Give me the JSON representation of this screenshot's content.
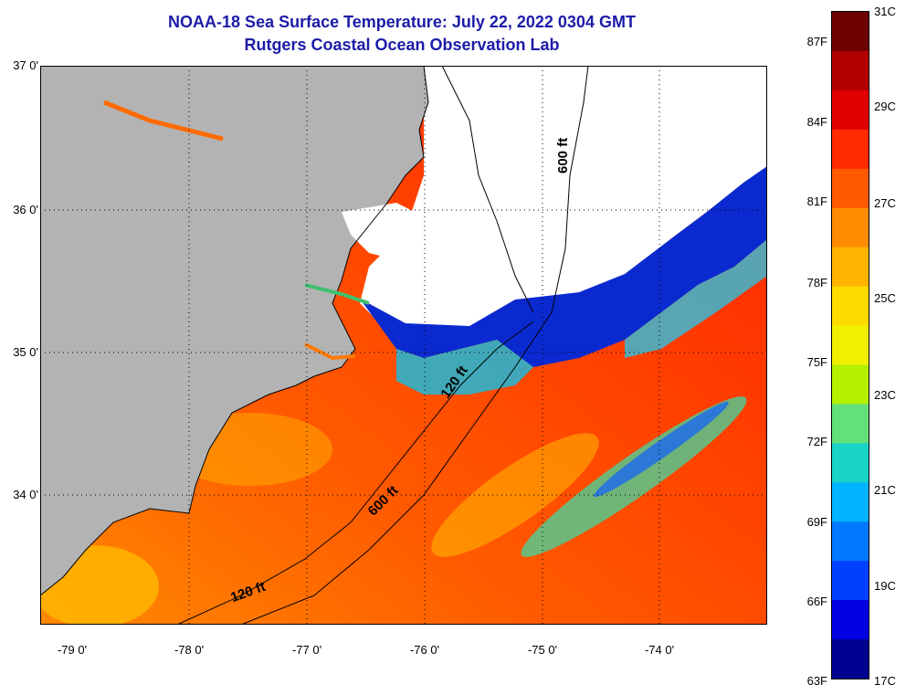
{
  "title_line1": "NOAA-18 Sea Surface Temperature:  July 22, 2022 0304 GMT",
  "title_line2": "Rutgers Coastal Ocean Observation Lab",
  "lat_labels": [
    "37 0'",
    "36 0'",
    "35 0'",
    "34 0'"
  ],
  "lon_labels": [
    "-79 0'",
    "-78 0'",
    "-77 0'",
    "-76 0'",
    "-75 0'",
    "-74 0'"
  ],
  "contour_labels": {
    "upper_600": "600 ft",
    "upper_120": "120 ft",
    "lower_600": "600 ft",
    "lower_120": "120 ft"
  },
  "colorbar": {
    "fahrenheit": [
      "87F",
      "84F",
      "81F",
      "78F",
      "75F",
      "72F",
      "69F",
      "66F",
      "63F"
    ],
    "celsius": [
      "31C",
      "29C",
      "27C",
      "25C",
      "23C",
      "21C",
      "19C",
      "17C"
    ],
    "colors": [
      "#6e0000",
      "#b20000",
      "#e00000",
      "#ff2a00",
      "#ff5a00",
      "#ff8c00",
      "#ffb400",
      "#ffdc00",
      "#f0f000",
      "#b4f000",
      "#64e07a",
      "#19d2c8",
      "#00b4ff",
      "#0078ff",
      "#0040ff",
      "#0000e0",
      "#000090"
    ]
  },
  "colors": {
    "land": "#b3b3b3",
    "cloud": "#ffffff",
    "title": "#1c1ca8",
    "ocean_warm": "#ff5500",
    "ocean_cool": "#ff2200",
    "nearshore_cold": "#0033cc"
  }
}
